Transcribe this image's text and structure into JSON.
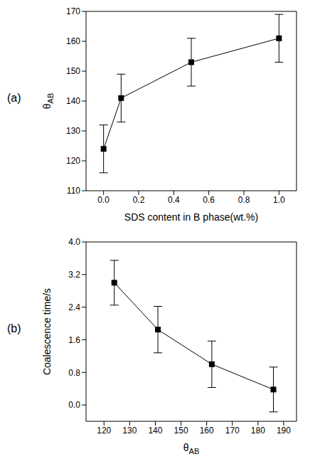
{
  "chart_data": [
    {
      "type": "line",
      "title": "(a)",
      "x_label": "SDS content in B phase(wt.%)",
      "y_label": "θAB",
      "xlim": [
        -0.1,
        1.1
      ],
      "xticks": [
        {
          "value": 0,
          "label": "0.0"
        },
        0.2,
        0.4,
        0.6,
        0.8,
        {
          "value": 1,
          "label": "1.0"
        }
      ],
      "ylim": [
        110,
        170
      ],
      "yticks": [
        110,
        120,
        130,
        140,
        150,
        160,
        170
      ],
      "series": [
        {
          "color": "#000000",
          "marker": "square",
          "line_style": "solid",
          "x": [
            0,
            0.1,
            0.5,
            1.0
          ],
          "values": [
            124,
            141,
            153,
            161
          ],
          "errors": [
            8,
            8,
            8,
            8
          ]
        }
      ]
    },
    {
      "type": "line",
      "title": "(b)",
      "x_label": "θAB",
      "y_label": "Coalescence time/s",
      "xlim": [
        113,
        195
      ],
      "xticks": [
        120,
        130,
        140,
        150,
        160,
        170,
        180,
        190
      ],
      "ylim": [
        -0.4,
        4.0
      ],
      "yticks": [
        {
          "value": 0,
          "label": "0.0"
        },
        0.8,
        1.6,
        2.4,
        3.2,
        {
          "value": 4,
          "label": "4.0"
        }
      ],
      "series": [
        {
          "color": "#000000",
          "marker": "square",
          "line_style": "solid",
          "x": [
            124,
            141,
            162,
            186
          ],
          "values": [
            3.0,
            1.85,
            1.0,
            0.38
          ],
          "errors": [
            0.55,
            0.57,
            0.57,
            0.55
          ]
        }
      ]
    }
  ]
}
